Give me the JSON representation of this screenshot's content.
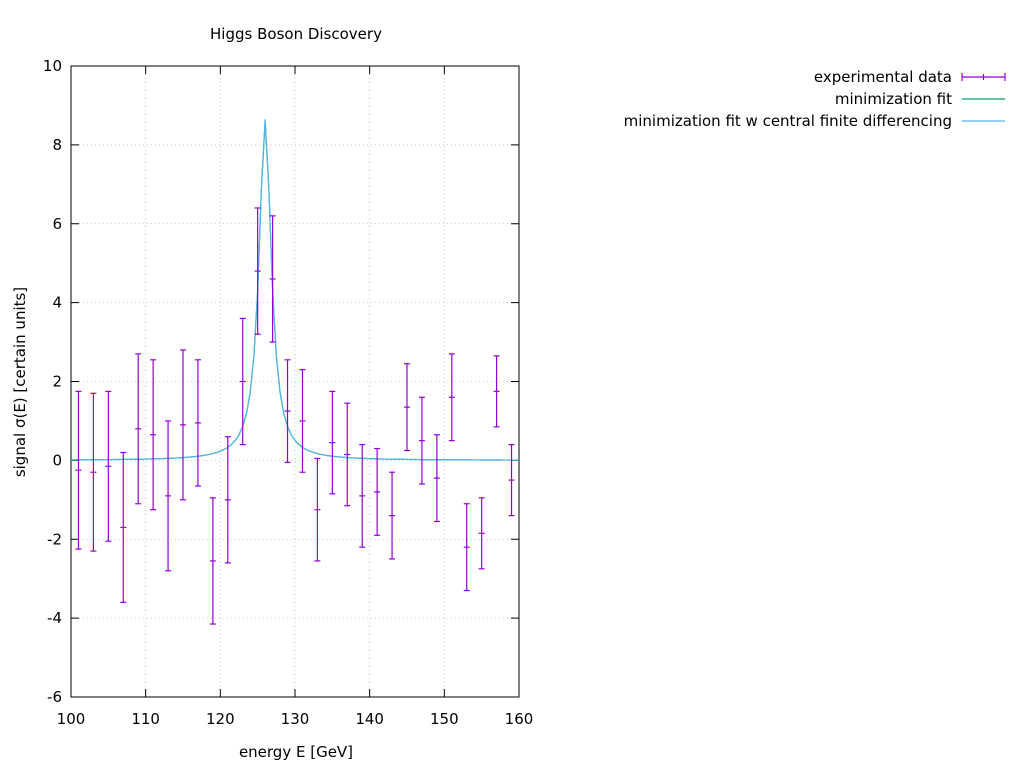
{
  "chart_data": {
    "type": "scatter",
    "title": "Higgs Boson Discovery",
    "xlabel": "energy E [GeV]",
    "ylabel": "signal σ(E) [certain units]",
    "xlim": [
      100,
      160
    ],
    "ylim": [
      -6,
      10
    ],
    "xticks": [
      100,
      110,
      120,
      130,
      140,
      150,
      160
    ],
    "yticks": [
      -6,
      -4,
      -2,
      0,
      2,
      4,
      6,
      8,
      10
    ],
    "grid": true,
    "legend_position": "top-right, outside plot",
    "series": [
      {
        "name": "experimental data",
        "kind": "errorbar",
        "color": "#9400d3",
        "x": [
          101,
          103,
          105,
          107,
          109,
          111,
          113,
          115,
          117,
          119,
          121,
          123,
          125,
          127,
          129,
          131,
          133,
          135,
          137,
          139,
          141,
          143,
          145,
          147,
          149,
          151,
          153,
          155,
          157,
          159
        ],
        "y": [
          -0.25,
          -0.3,
          -0.15,
          -1.7,
          0.8,
          0.65,
          -0.9,
          0.9,
          0.95,
          -2.55,
          -1.0,
          2.0,
          4.8,
          4.6,
          1.25,
          1.0,
          -1.25,
          0.45,
          0.15,
          -0.9,
          -0.8,
          -1.4,
          1.35,
          0.5,
          -0.45,
          1.6,
          -2.2,
          -1.85,
          1.75,
          -0.5
        ],
        "yerr": [
          2.0,
          2.0,
          1.9,
          1.9,
          1.9,
          1.9,
          1.9,
          1.9,
          1.6,
          1.6,
          1.6,
          1.6,
          1.6,
          1.6,
          1.3,
          1.3,
          1.3,
          1.3,
          1.3,
          1.3,
          1.1,
          1.1,
          1.1,
          1.1,
          1.1,
          1.1,
          1.1,
          0.9,
          0.9,
          0.9
        ]
      },
      {
        "name": "minimization fit",
        "kind": "line",
        "color": "#009e73",
        "model": "breit-wigner",
        "mass": 126.0,
        "width": 2.0,
        "peak": 8.6
      },
      {
        "name": "minimization fit w central finite differencing",
        "kind": "line",
        "color": "#56b4e9",
        "model": "breit-wigner",
        "mass": 126.0,
        "width": 2.0,
        "peak": 8.65
      }
    ]
  }
}
